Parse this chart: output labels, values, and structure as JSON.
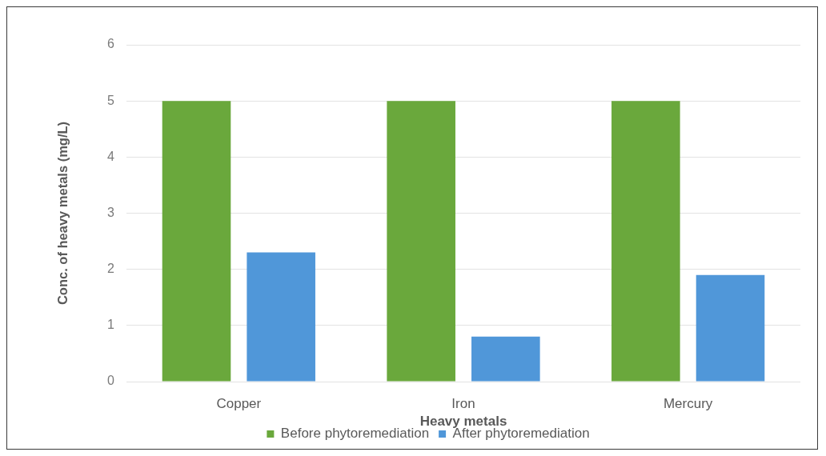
{
  "chart_data": {
    "type": "bar",
    "xlabel": "Heavy metals",
    "ylabel": "Conc. of heavy metals (mg/L)",
    "categories": [
      "Copper",
      "Iron",
      "Mercury"
    ],
    "series": [
      {
        "name": "Before phytoremediation",
        "color": "#6aa83c",
        "values": [
          5,
          5,
          5
        ]
      },
      {
        "name": "After phytoremediation",
        "color": "#5097d9",
        "values": [
          2.3,
          0.8,
          1.9
        ]
      }
    ],
    "ylim": [
      0,
      6
    ],
    "yticks": [
      0,
      1,
      2,
      3,
      4,
      5,
      6
    ],
    "grid": "y",
    "legend": "bottom"
  }
}
